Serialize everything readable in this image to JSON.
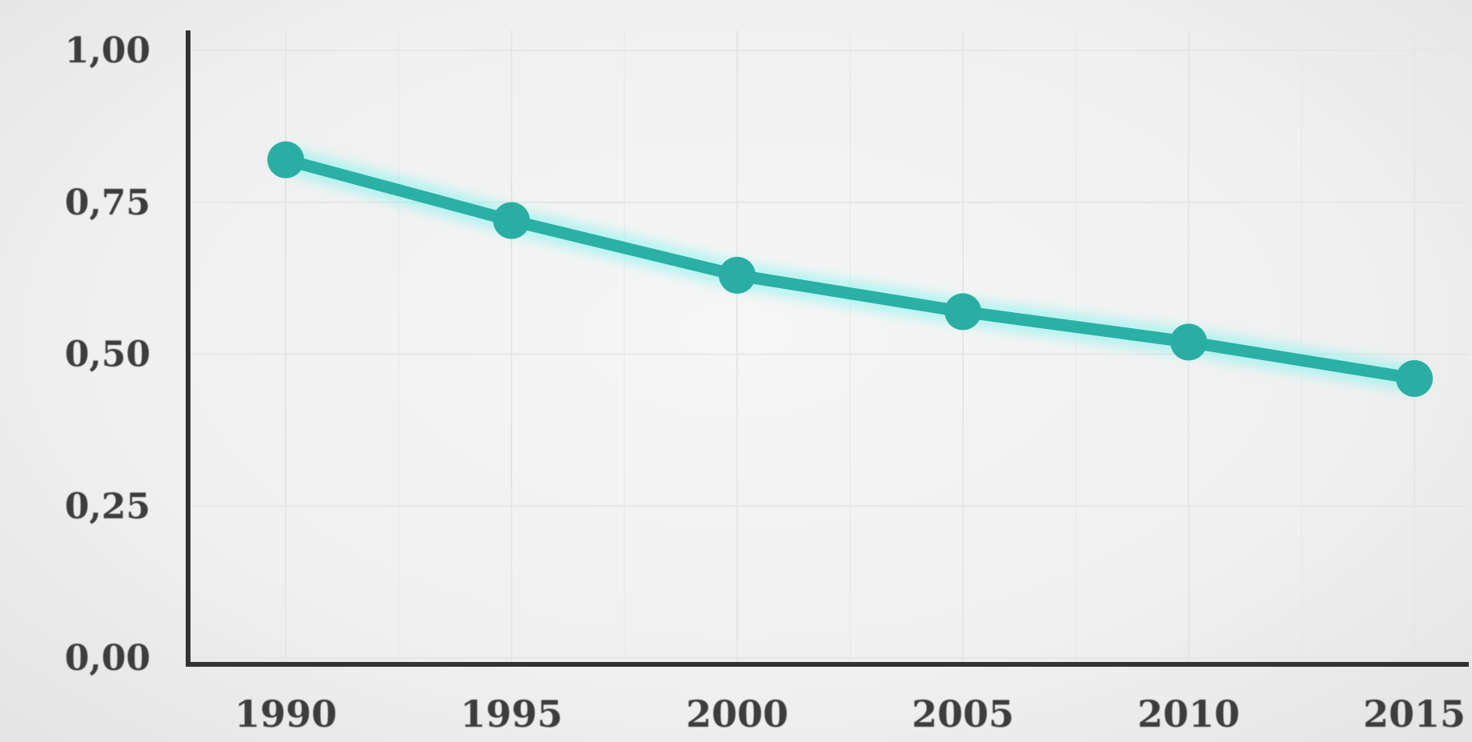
{
  "chart_data": {
    "type": "line",
    "title": "",
    "xlabel": "",
    "ylabel": "",
    "categories": [
      "1990",
      "1995",
      "2000",
      "2005",
      "2010",
      "2015"
    ],
    "x": [
      1990,
      1995,
      2000,
      2005,
      2010,
      2015
    ],
    "series": [
      {
        "values": [
          0.82,
          0.72,
          0.63,
          0.57,
          0.52,
          0.46
        ]
      }
    ],
    "ylim": [
      0,
      1
    ],
    "yticks": [
      0,
      0.25,
      0.5,
      0.75,
      1.0
    ],
    "ytick_labels": [
      "0,00",
      "0,25",
      "0,50",
      "0,75",
      "1,00"
    ],
    "grid": true,
    "legend": "none",
    "colors": {
      "line": "#2ab0a5",
      "marker": "#2aaea3",
      "glow": "#7ff3ee",
      "axis": "#333333",
      "grid": "#e6e6e6",
      "text": "#3e3e3e"
    }
  }
}
